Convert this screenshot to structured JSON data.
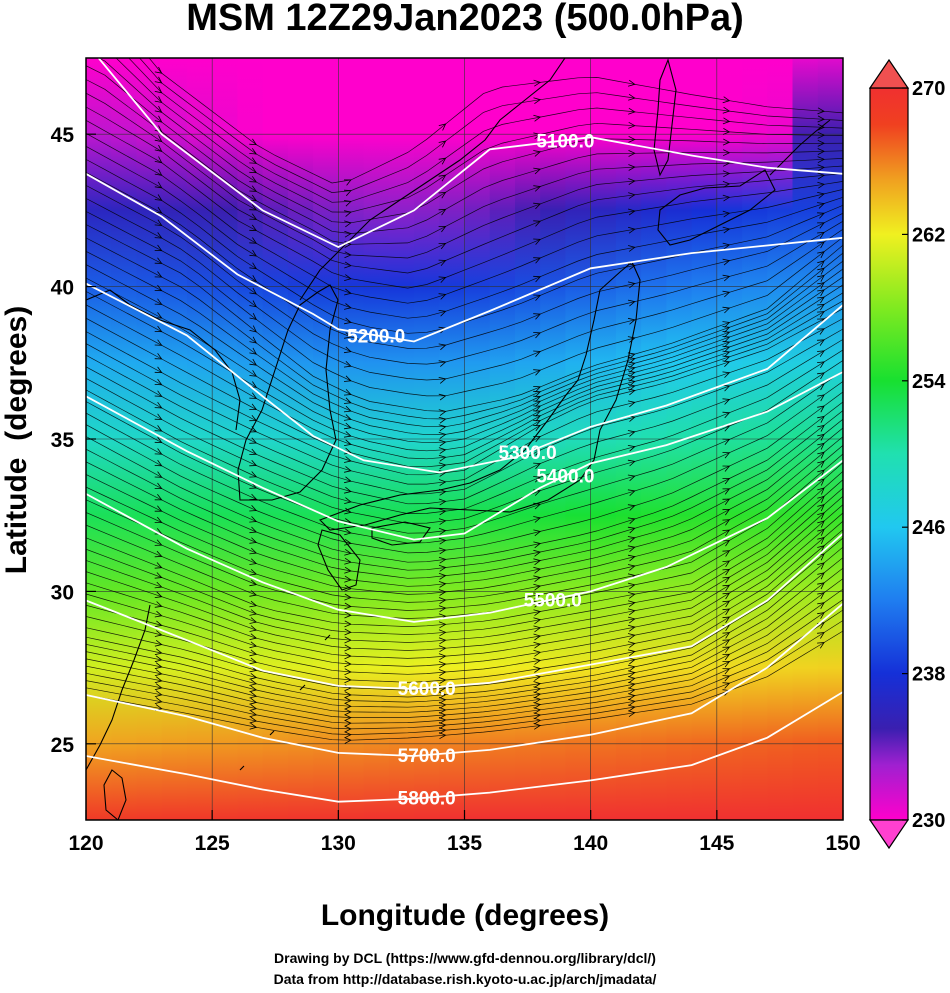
{
  "chart_data": {
    "type": "heatmap",
    "title": "MSM 12Z29Jan2023 (500.0hPa)",
    "xlabel": "Longitude (degrees)",
    "ylabel": "Latitude  (degrees)",
    "xlim": [
      120,
      150
    ],
    "ylim": [
      22.5,
      47.5
    ],
    "xticks": [
      120,
      125,
      130,
      135,
      140,
      145,
      150
    ],
    "yticks": [
      25,
      30,
      35,
      40,
      45
    ],
    "colorbar": {
      "range": [
        230,
        270
      ],
      "ticks": [
        230,
        238,
        246,
        254,
        262,
        270
      ],
      "extend": "both"
    },
    "colormap": [
      {
        "v": 230,
        "c": "#ff00cc"
      },
      {
        "v": 233,
        "c": "#a020d0"
      },
      {
        "v": 235,
        "c": "#3a1fb0"
      },
      {
        "v": 238,
        "c": "#1530d8"
      },
      {
        "v": 242,
        "c": "#1f7df0"
      },
      {
        "v": 246,
        "c": "#21c8f0"
      },
      {
        "v": 250,
        "c": "#20e0b0"
      },
      {
        "v": 254,
        "c": "#18e030"
      },
      {
        "v": 258,
        "c": "#80ea20"
      },
      {
        "v": 262,
        "c": "#f0f020"
      },
      {
        "v": 265,
        "c": "#f0a020"
      },
      {
        "v": 268,
        "c": "#f04020"
      },
      {
        "v": 270,
        "c": "#f03030"
      }
    ],
    "height_contours": [
      {
        "label": "5100.0",
        "points": [
          [
            120.5,
            47.5
          ],
          [
            123,
            45
          ],
          [
            127,
            42.5
          ],
          [
            130,
            41.3
          ],
          [
            133,
            42.5
          ],
          [
            136,
            44.5
          ],
          [
            140,
            44.9
          ],
          [
            144,
            44.3
          ],
          [
            147,
            43.9
          ],
          [
            150,
            43.7
          ]
        ]
      },
      {
        "label": "5200.0",
        "points": [
          [
            120,
            43.7
          ],
          [
            123,
            42.3
          ],
          [
            126,
            40.4
          ],
          [
            129,
            39.1
          ],
          [
            130,
            38.6
          ],
          [
            133,
            38.2
          ],
          [
            136,
            39.2
          ],
          [
            140,
            40.6
          ],
          [
            144,
            41.1
          ],
          [
            150,
            41.6
          ]
        ]
      },
      {
        "label": "5300.0",
        "points": [
          [
            120,
            40.1
          ],
          [
            124,
            38.4
          ],
          [
            127,
            36.4
          ],
          [
            129,
            35.1
          ],
          [
            131,
            34.3
          ],
          [
            134,
            33.9
          ],
          [
            137,
            34.4
          ],
          [
            140,
            35.4
          ],
          [
            143,
            36.1
          ],
          [
            147,
            37.3
          ],
          [
            150,
            39.4
          ]
        ]
      },
      {
        "label": "5400.0",
        "points": [
          [
            120,
            36.4
          ],
          [
            124,
            34.6
          ],
          [
            127,
            33.4
          ],
          [
            130,
            32.3
          ],
          [
            133,
            31.7
          ],
          [
            135,
            31.9
          ],
          [
            138,
            33.4
          ],
          [
            140,
            34.2
          ],
          [
            143,
            34.8
          ],
          [
            147,
            35.9
          ],
          [
            150,
            37.2
          ]
        ]
      },
      {
        "label": "5500.0",
        "points": [
          [
            120,
            33.2
          ],
          [
            124,
            31.4
          ],
          [
            127,
            30.3
          ],
          [
            130,
            29.4
          ],
          [
            133,
            29.0
          ],
          [
            136,
            29.3
          ],
          [
            140,
            30.0
          ],
          [
            143,
            30.8
          ],
          [
            147,
            32.4
          ],
          [
            150,
            34.3
          ]
        ]
      },
      {
        "label": "5600.0",
        "points": [
          [
            120,
            29.7
          ],
          [
            124,
            28.4
          ],
          [
            127,
            27.4
          ],
          [
            130,
            26.9
          ],
          [
            133,
            26.8
          ],
          [
            136,
            27.0
          ],
          [
            140,
            27.6
          ],
          [
            144,
            28.2
          ],
          [
            147,
            29.7
          ],
          [
            150,
            31.9
          ]
        ]
      },
      {
        "label": "5700.0",
        "points": [
          [
            120,
            26.6
          ],
          [
            124,
            25.9
          ],
          [
            127,
            25.2
          ],
          [
            130,
            24.7
          ],
          [
            133,
            24.6
          ],
          [
            136,
            24.8
          ],
          [
            140,
            25.3
          ],
          [
            144,
            26.0
          ],
          [
            147,
            27.5
          ],
          [
            150,
            29.6
          ]
        ]
      },
      {
        "label": "5800.0",
        "points": [
          [
            120,
            24.6
          ],
          [
            124,
            24.0
          ],
          [
            127,
            23.5
          ],
          [
            130,
            23.1
          ],
          [
            133,
            23.2
          ],
          [
            136,
            23.4
          ],
          [
            140,
            23.8
          ],
          [
            144,
            24.3
          ],
          [
            147,
            25.2
          ],
          [
            150,
            26.7
          ]
        ]
      }
    ],
    "wind_field": "streamlines with arrows, westerly flow",
    "credits": [
      "Drawing by DCL (https://www.gfd-dennou.org/library/dcl/)",
      "Data from http://database.rish.kyoto-u.ac.jp/arch/jmadata/"
    ]
  }
}
